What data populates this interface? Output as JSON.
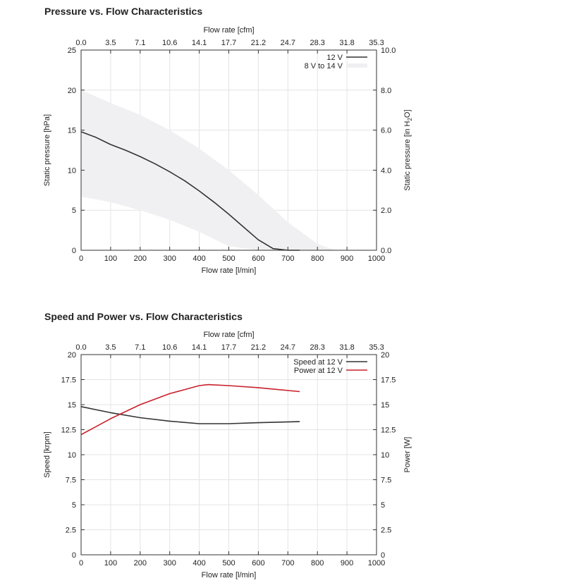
{
  "chart_data": [
    {
      "type": "line",
      "title": "Pressure vs. Flow Characteristics",
      "xlabel": "Flow rate [l/min]",
      "x2label": "Flow rate [cfm]",
      "ylabel": "Static pressure [hPa]",
      "y2label_parts": [
        "Static pressure [in H",
        "2",
        "O]"
      ],
      "xlim": [
        0,
        1000
      ],
      "ylim": [
        0,
        25
      ],
      "x_ticks": [
        "0",
        "100",
        "200",
        "300",
        "400",
        "500",
        "600",
        "700",
        "800",
        "900",
        "1000"
      ],
      "x2_ticks": [
        "0.0",
        "3.5",
        "7.1",
        "10.6",
        "14.1",
        "17.7",
        "21.2",
        "24.7",
        "28.3",
        "31.8",
        "35.3"
      ],
      "y_ticks": [
        "0",
        "5",
        "10",
        "15",
        "20",
        "25"
      ],
      "y2_ticks": [
        "0.0",
        "2.0",
        "4.0",
        "6.0",
        "8.0",
        "10.0"
      ],
      "grid": true,
      "legend_position": "top-right",
      "series": [
        {
          "name": "12 V",
          "kind": "line",
          "color": "#333333",
          "x": [
            0,
            50,
            100,
            150,
            200,
            250,
            300,
            350,
            400,
            450,
            500,
            550,
            600,
            650,
            700,
            740
          ],
          "y": [
            14.8,
            14.1,
            13.2,
            12.5,
            11.7,
            10.8,
            9.8,
            8.7,
            7.4,
            6.0,
            4.5,
            2.9,
            1.3,
            0.2,
            0,
            0
          ]
        },
        {
          "name": "8 V to 14 V",
          "kind": "band",
          "color": "#f0f0f2",
          "x": [
            0,
            100,
            200,
            300,
            400,
            500,
            600,
            700,
            800,
            860
          ],
          "upper": [
            20.0,
            18.4,
            16.9,
            15.0,
            12.7,
            10.0,
            6.9,
            3.5,
            0.8,
            0
          ],
          "lower": [
            6.7,
            6.0,
            5.0,
            3.8,
            2.3,
            0.5,
            0,
            0,
            0,
            0
          ]
        }
      ]
    },
    {
      "type": "line",
      "title": "Speed and Power vs. Flow Characteristics",
      "xlabel": "Flow rate [l/min]",
      "x2label": "Flow rate [cfm]",
      "ylabel": "Speed [krpm]",
      "y2label": "Power [W]",
      "xlim": [
        0,
        1000
      ],
      "ylim": [
        0,
        20
      ],
      "x_ticks": [
        "0",
        "100",
        "200",
        "300",
        "400",
        "500",
        "600",
        "700",
        "800",
        "900",
        "1000"
      ],
      "x2_ticks": [
        "0.0",
        "3.5",
        "7.1",
        "10.6",
        "14.1",
        "17.7",
        "21.2",
        "24.7",
        "28.3",
        "31.8",
        "35.3"
      ],
      "y_ticks": [
        "0",
        "2.5",
        "5",
        "7.5",
        "10",
        "12.5",
        "15",
        "17.5",
        "20"
      ],
      "y2_ticks": [
        "0",
        "2.5",
        "5",
        "7.5",
        "10",
        "12.5",
        "15",
        "17.5",
        "20"
      ],
      "grid": true,
      "legend_position": "top-right",
      "series": [
        {
          "name": "Speed at 12 V",
          "kind": "line",
          "color": "#333333",
          "x": [
            0,
            100,
            200,
            300,
            400,
            500,
            600,
            740
          ],
          "y": [
            14.8,
            14.2,
            13.7,
            13.35,
            13.1,
            13.1,
            13.2,
            13.3
          ]
        },
        {
          "name": "Power at 12 V",
          "kind": "line",
          "color": "#c8202a",
          "x": [
            0,
            100,
            200,
            300,
            400,
            430,
            500,
            600,
            740
          ],
          "y": [
            12.0,
            13.6,
            15.0,
            16.1,
            16.9,
            17.0,
            16.9,
            16.7,
            16.3
          ]
        }
      ]
    }
  ]
}
